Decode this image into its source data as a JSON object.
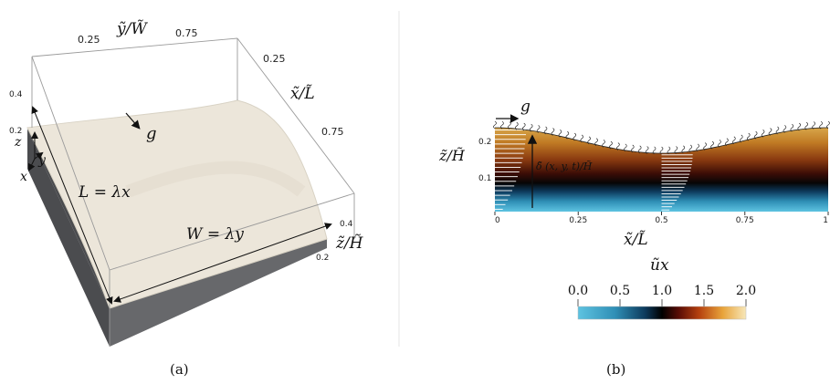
{
  "panel_a": {
    "caption": "(a)",
    "top_axis": {
      "label": "ỹ/W̃",
      "ticks": [
        "0.25",
        "0.75"
      ]
    },
    "right_axis": {
      "label": "x̃/L̃",
      "ticks": [
        "0.25",
        "0.75"
      ]
    },
    "z_axis": {
      "label": "z̃/H̃",
      "ticks": [
        "0.4",
        "0.2"
      ]
    },
    "left_ticks": [
      "0.4",
      "0.2"
    ],
    "gravity": "g",
    "length_label": "L = λx",
    "width_label": "W = λy",
    "triad": {
      "z": "z",
      "y": "y",
      "x": "x"
    },
    "colors": {
      "surface": "#ece6da",
      "solid": "#67686b",
      "solid_dark": "#4b4c4f",
      "box": "#9a9a9a"
    }
  },
  "panel_b": {
    "caption": "(b)",
    "gravity": "g",
    "ylabel": "z̃/H̃",
    "xlabel": "x̃/L̃",
    "x_ticks": [
      "0",
      "0.25",
      "0.5",
      "0.75",
      "1"
    ],
    "y_ticks": [
      "0.2",
      "0.1"
    ],
    "delta_label": "δ̃ (x, y, t)/H̃",
    "colorbar": {
      "label": "ũx",
      "ticks": [
        "0.0",
        "0.5",
        "1.0",
        "1.5",
        "2.0"
      ],
      "range": [
        0.0,
        2.0
      ],
      "stops": [
        "#5ec3e1",
        "#2f8fb6",
        "#0d3a5c",
        "#000000",
        "#5a0d06",
        "#b5400f",
        "#e8a33a",
        "#f7e7b9"
      ]
    },
    "profile": {
      "type": "line",
      "x": [
        0,
        0.25,
        0.5,
        0.75,
        1
      ],
      "y": [
        0.23,
        0.2,
        0.16,
        0.2,
        0.23
      ]
    }
  }
}
